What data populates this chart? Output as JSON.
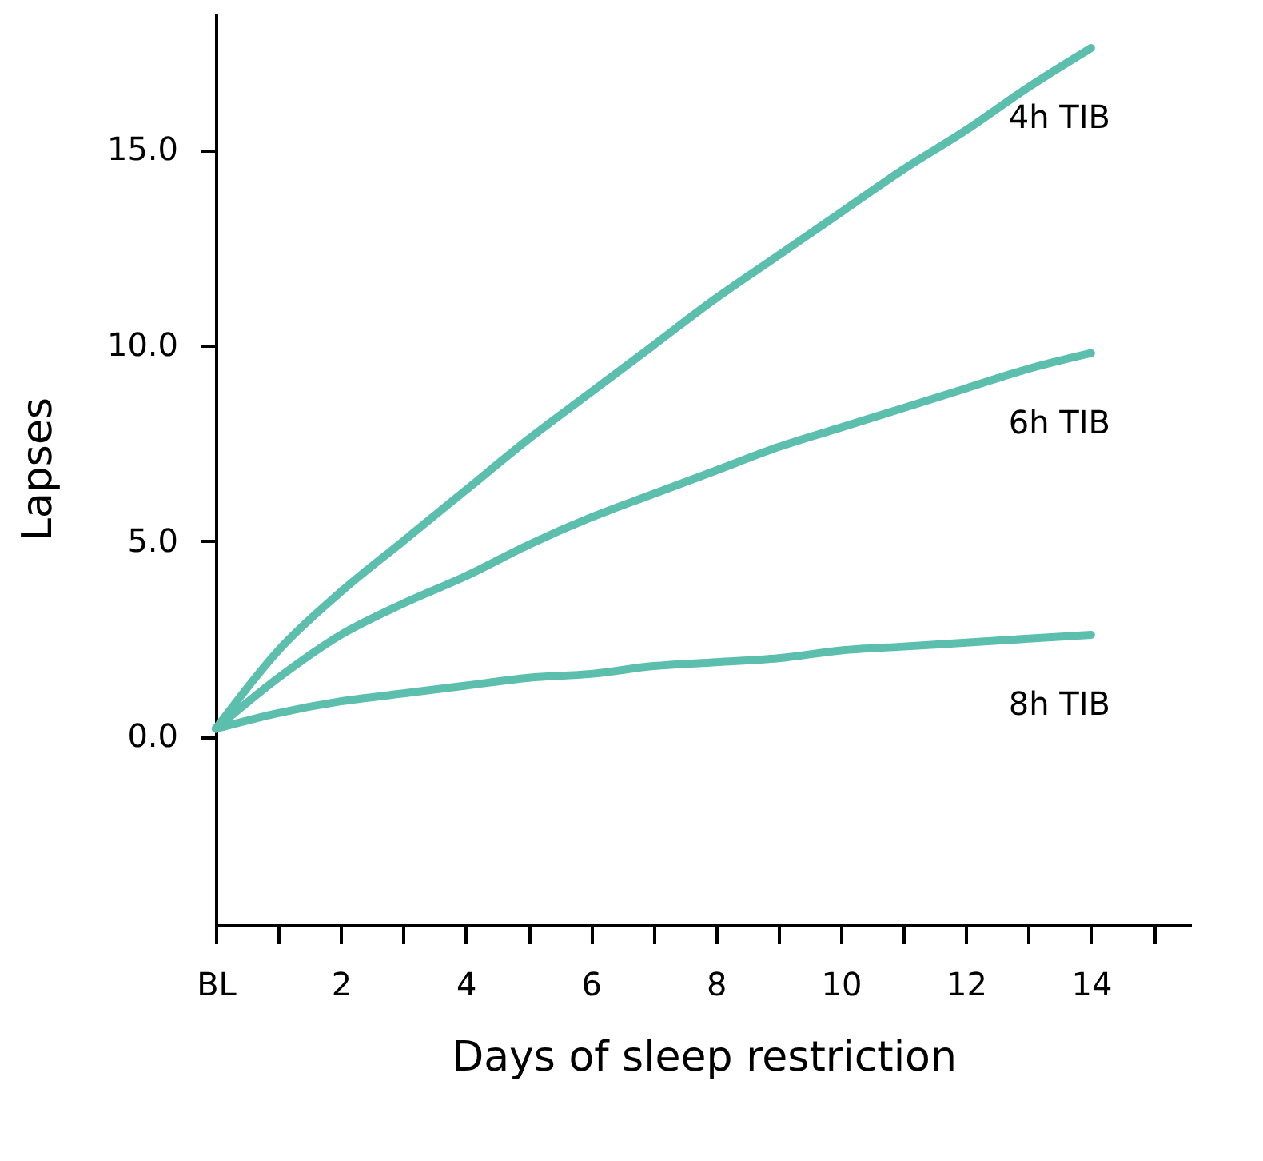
{
  "chart_data": {
    "type": "line",
    "xlabel": "Days of sleep restriction",
    "ylabel": "Lapses",
    "x": [
      0,
      1,
      2,
      3,
      4,
      5,
      6,
      7,
      8,
      9,
      10,
      11,
      12,
      13,
      14
    ],
    "series": [
      {
        "name": "4h TIB",
        "color": "#5cbfad",
        "values": [
          0.2,
          2.2,
          3.7,
          5.0,
          6.3,
          7.6,
          8.8,
          10.0,
          11.2,
          12.3,
          13.4,
          14.5,
          15.5,
          16.6,
          17.6
        ]
      },
      {
        "name": "6h TIB",
        "color": "#5cbfad",
        "values": [
          0.2,
          1.5,
          2.6,
          3.4,
          4.1,
          4.9,
          5.6,
          6.2,
          6.8,
          7.4,
          7.9,
          8.4,
          8.9,
          9.4,
          9.8
        ]
      },
      {
        "name": "8h TIB",
        "color": "#5cbfad",
        "values": [
          0.2,
          0.6,
          0.9,
          1.1,
          1.3,
          1.5,
          1.6,
          1.8,
          1.9,
          2.0,
          2.2,
          2.3,
          2.4,
          2.5,
          2.6
        ]
      }
    ],
    "xlim": [
      0,
      15.6
    ],
    "ylim": [
      -4.8,
      18.5
    ],
    "xticks": [
      {
        "value": 0,
        "label": "BL"
      },
      {
        "value": 1,
        "label": null
      },
      2,
      {
        "value": 3,
        "label": null
      },
      4,
      {
        "value": 5,
        "label": null
      },
      6,
      {
        "value": 7,
        "label": null
      },
      8,
      {
        "value": 9,
        "label": null
      },
      10,
      {
        "value": 11,
        "label": null
      },
      12,
      {
        "value": 13,
        "label": null
      },
      14,
      {
        "value": 15,
        "label": null
      }
    ],
    "yticks": [
      {
        "value": 0,
        "label": "0.0"
      },
      {
        "value": 5,
        "label": "5.0"
      },
      {
        "value": 10,
        "label": "10.0"
      },
      {
        "value": 15,
        "label": "15.0"
      }
    ],
    "grid": false,
    "marker": "none",
    "line_style": "solid"
  }
}
